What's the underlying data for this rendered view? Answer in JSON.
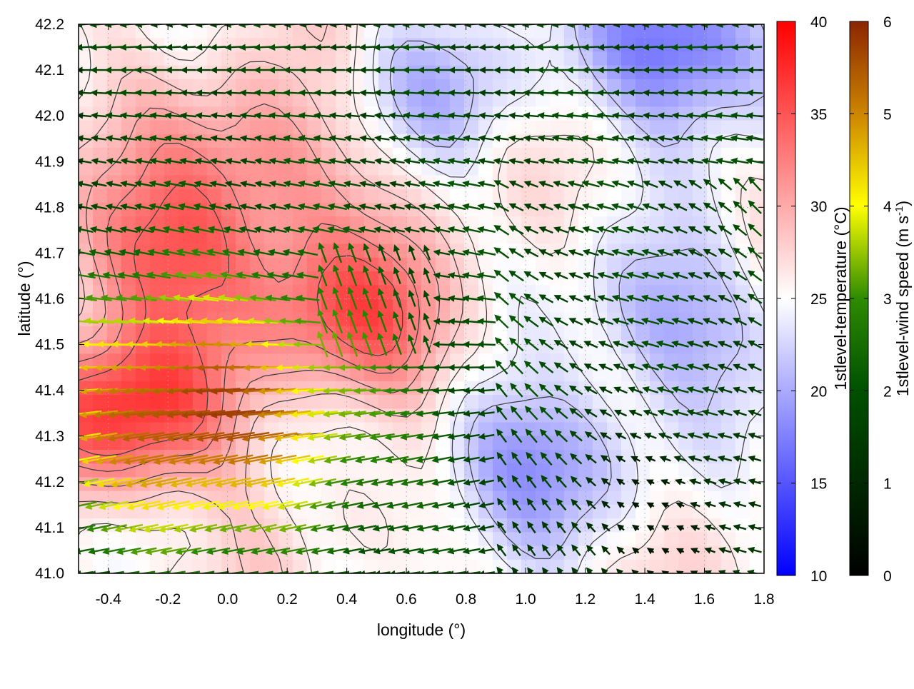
{
  "chart_data": {
    "type": "heatmap",
    "title": "",
    "xlabel": "longitude (°)",
    "ylabel": "latitude (°)",
    "xlim": [
      -0.5,
      1.8
    ],
    "ylim": [
      41.0,
      42.2
    ],
    "x_ticks": [
      "-0.4",
      "-0.2",
      "0.0",
      "0.2",
      "0.4",
      "0.6",
      "0.8",
      "1.0",
      "1.2",
      "1.4",
      "1.6",
      "1.8"
    ],
    "y_ticks": [
      "41.0",
      "41.1",
      "41.2",
      "41.3",
      "41.4",
      "41.5",
      "41.6",
      "41.7",
      "41.8",
      "41.9",
      "42.0",
      "42.1",
      "42.2"
    ],
    "grid": true,
    "colorbars": [
      {
        "name": "temperature",
        "label": "1stlevel-temperature (°C)",
        "range": [
          10,
          40
        ],
        "ticks": [
          "10",
          "15",
          "20",
          "25",
          "30",
          "35",
          "40"
        ],
        "colors": [
          "#0000ff",
          "#ffffff",
          "#ff0000"
        ]
      },
      {
        "name": "wind",
        "label_main": "1stlevel-wind speed (m s",
        "label_sup": "-1",
        "label_end": ")",
        "range": [
          0,
          6
        ],
        "ticks": [
          "0",
          "1",
          "2",
          "3",
          "4",
          "5",
          "6"
        ],
        "colors": [
          "#000000",
          "#005000",
          "#2e8b00",
          "#ffff00",
          "#cd8500",
          "#8b2500"
        ]
      }
    ],
    "temperature_field": {
      "warm_centers": [
        {
          "lon": -0.35,
          "lat": 41.35,
          "value": 37
        },
        {
          "lon": -0.2,
          "lat": 41.7,
          "value": 34
        },
        {
          "lon": 0.45,
          "lat": 41.55,
          "value": 35
        },
        {
          "lon": 0.1,
          "lat": 41.9,
          "value": 32
        }
      ],
      "cool_centers": [
        {
          "lon": 1.55,
          "lat": 42.15,
          "value": 16
        },
        {
          "lon": 1.0,
          "lat": 41.25,
          "value": 19
        },
        {
          "lon": 1.5,
          "lat": 41.55,
          "value": 20
        },
        {
          "lon": 0.7,
          "lat": 42.05,
          "value": 22
        }
      ],
      "background": 26
    },
    "wind_field": {
      "strong_region": {
        "lon": -0.1,
        "lat": 41.35,
        "max_speed": 5.8
      },
      "direction": "toward west (easterly flow)",
      "calm_region": {
        "lon": 1.45,
        "lat": 41.1,
        "speed": 0.8
      }
    }
  }
}
